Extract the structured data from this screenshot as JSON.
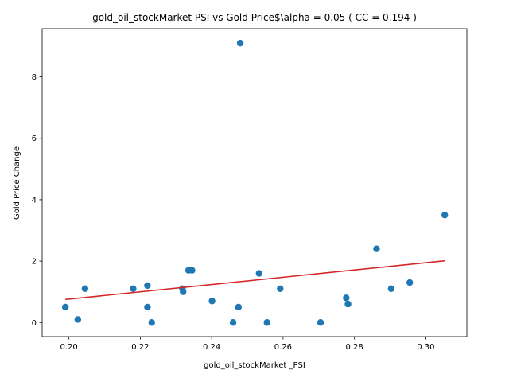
{
  "chart_data": {
    "type": "scatter",
    "title": "gold_oil_stockMarket  PSI vs Gold Price$\\alpha = 0.05 ( CC = 0.194 )",
    "xlabel": "gold_oil_stockMarket _PSI",
    "ylabel": "Gold Price Change",
    "xlim": [
      0.1925,
      0.3115
    ],
    "ylim": [
      -0.46,
      9.57
    ],
    "xticks": [
      0.2,
      0.22,
      0.24,
      0.26,
      0.28,
      0.3
    ],
    "xtick_labels": [
      "0.20",
      "0.22",
      "0.24",
      "0.26",
      "0.28",
      "0.30"
    ],
    "yticks": [
      0,
      2,
      4,
      6,
      8
    ],
    "ytick_labels": [
      "0",
      "2",
      "4",
      "6",
      "8"
    ],
    "grid": false,
    "points": {
      "color": "#1f77b4",
      "x": [
        0.199,
        0.2025,
        0.2045,
        0.218,
        0.222,
        0.222,
        0.2232,
        0.2318,
        0.232,
        0.2335,
        0.2345,
        0.2401,
        0.246,
        0.2475,
        0.248,
        0.2533,
        0.2555,
        0.2592,
        0.2705,
        0.2777,
        0.2782,
        0.2862,
        0.2903,
        0.2955,
        0.3053
      ],
      "y": [
        0.5,
        0.1,
        1.1,
        1.1,
        0.5,
        1.2,
        0.0,
        1.1,
        1.0,
        1.7,
        1.7,
        0.7,
        0.0,
        0.5,
        9.1,
        1.6,
        0.0,
        1.1,
        0.0,
        0.8,
        0.6,
        2.4,
        1.1,
        1.3,
        3.5
      ]
    },
    "fit_line": {
      "color": "#d62728",
      "x": [
        0.199,
        0.3053
      ],
      "y": [
        0.75,
        2.01
      ]
    }
  }
}
